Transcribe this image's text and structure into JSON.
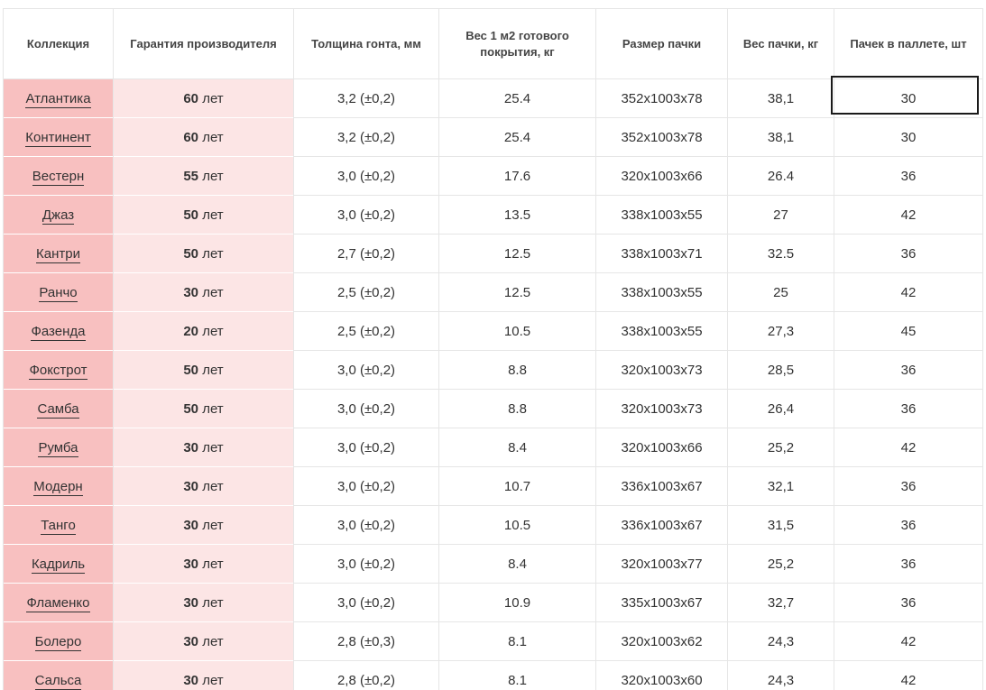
{
  "headers": [
    "Коллекция",
    "Гарантия производителя",
    "Толщина гонта, мм",
    "Вес 1 м2 готового покрытия, кг",
    "Размер пачки",
    "Вес пачки, кг",
    "Пачек в паллете, шт"
  ],
  "warranty_unit": "лет",
  "rows": [
    {
      "name": "Атлантика",
      "years": "60",
      "thickness": "3,2 (±0,2)",
      "weight_m2": "25.4",
      "size": "352x1003x78",
      "pack_weight": "38,1",
      "packs": "30"
    },
    {
      "name": "Континент",
      "years": "60",
      "thickness": "3,2 (±0,2)",
      "weight_m2": "25.4",
      "size": "352x1003x78",
      "pack_weight": "38,1",
      "packs": "30"
    },
    {
      "name": "Вестерн",
      "years": "55",
      "thickness": "3,0 (±0,2)",
      "weight_m2": "17.6",
      "size": "320x1003x66",
      "pack_weight": "26.4",
      "packs": "36"
    },
    {
      "name": "Джаз",
      "years": "50",
      "thickness": "3,0 (±0,2)",
      "weight_m2": "13.5",
      "size": "338x1003x55",
      "pack_weight": "27",
      "packs": "42"
    },
    {
      "name": "Кантри",
      "years": "50",
      "thickness": "2,7 (±0,2)",
      "weight_m2": "12.5",
      "size": "338x1003x71",
      "pack_weight": "32.5",
      "packs": "36"
    },
    {
      "name": "Ранчо",
      "years": "30",
      "thickness": "2,5 (±0,2)",
      "weight_m2": "12.5",
      "size": "338x1003x55",
      "pack_weight": "25",
      "packs": "42"
    },
    {
      "name": "Фазенда",
      "years": "20",
      "thickness": "2,5 (±0,2)",
      "weight_m2": "10.5",
      "size": "338x1003x55",
      "pack_weight": "27,3",
      "packs": "45"
    },
    {
      "name": "Фокстрот",
      "years": "50",
      "thickness": "3,0 (±0,2)",
      "weight_m2": "8.8",
      "size": "320x1003x73",
      "pack_weight": "28,5",
      "packs": "36"
    },
    {
      "name": "Самба",
      "years": "50",
      "thickness": "3,0 (±0,2)",
      "weight_m2": "8.8",
      "size": "320x1003x73",
      "pack_weight": "26,4",
      "packs": "36"
    },
    {
      "name": "Румба",
      "years": "30",
      "thickness": "3,0 (±0,2)",
      "weight_m2": "8.4",
      "size": "320x1003x66",
      "pack_weight": "25,2",
      "packs": "42"
    },
    {
      "name": "Модерн",
      "years": "30",
      "thickness": "3,0 (±0,2)",
      "weight_m2": "10.7",
      "size": "336x1003x67",
      "pack_weight": "32,1",
      "packs": "36"
    },
    {
      "name": "Танго",
      "years": "30",
      "thickness": "3,0 (±0,2)",
      "weight_m2": "10.5",
      "size": "336x1003x67",
      "pack_weight": "31,5",
      "packs": "36"
    },
    {
      "name": "Кадриль",
      "years": "30",
      "thickness": "3,0 (±0,2)",
      "weight_m2": "8.4",
      "size": "320x1003x77",
      "pack_weight": "25,2",
      "packs": "36"
    },
    {
      "name": "Фламенко",
      "years": "30",
      "thickness": "3,0 (±0,2)",
      "weight_m2": "10.9",
      "size": "335x1003x67",
      "pack_weight": "32,7",
      "packs": "36"
    },
    {
      "name": "Болеро",
      "years": "30",
      "thickness": "2,8 (±0,3)",
      "weight_m2": "8.1",
      "size": "320x1003x62",
      "pack_weight": "24,3",
      "packs": "42"
    },
    {
      "name": "Сальса",
      "years": "30",
      "thickness": "2,8 (±0,2)",
      "weight_m2": "8.1",
      "size": "320x1003x60",
      "pack_weight": "24,3",
      "packs": "42"
    }
  ],
  "colors": {
    "name_column_bg": "#f8c0c0",
    "warranty_column_bg": "#fce5e5",
    "border": "#e6e6e6",
    "selection_outline": "#1a1a1a"
  }
}
